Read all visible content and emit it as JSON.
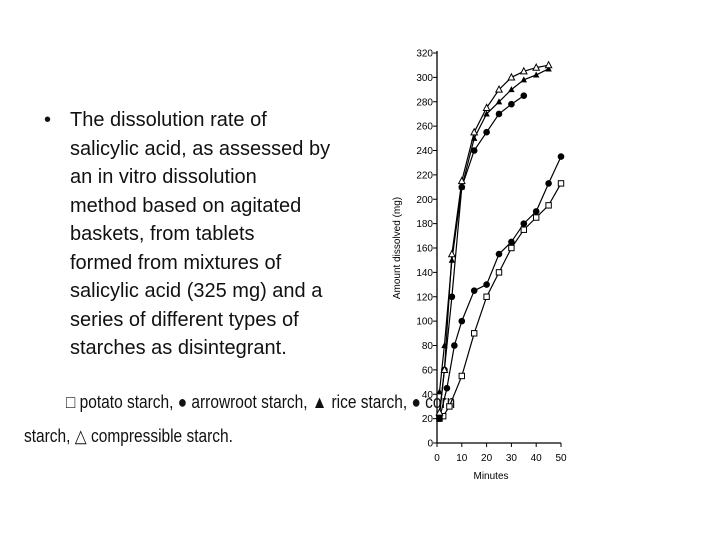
{
  "bullet": {
    "symbol": "•",
    "lines": [
      "The dissolution rate of",
      "salicylic acid, as assessed by",
      "an in vitro dissolution",
      "method based on agitated",
      "baskets, from tablets",
      "formed from mixtures of",
      "salicylic acid (325 mg) and a",
      "series of different types of",
      "starches as disintegrant."
    ]
  },
  "legend": {
    "line1": [
      {
        "marker": "□",
        "text": " potato starch, "
      },
      {
        "marker": "●",
        "text": " arrowroot starch, "
      },
      {
        "marker": "▲",
        "text": " rice starch, "
      },
      {
        "marker": "●",
        "text": " corn"
      }
    ],
    "line2": [
      {
        "marker": "",
        "text": "starch, "
      },
      {
        "marker": "△",
        "text": " compressible starch."
      }
    ]
  },
  "chart_data": {
    "type": "line",
    "xlabel": "Minutes",
    "ylabel": "Amount dissolved (mg)",
    "xlim": [
      0,
      50
    ],
    "ylim": [
      0,
      320
    ],
    "xticks": [
      0,
      10,
      20,
      30,
      40,
      50
    ],
    "yticks": [
      0,
      20,
      40,
      60,
      80,
      100,
      120,
      140,
      160,
      180,
      200,
      220,
      240,
      260,
      280,
      300,
      320
    ],
    "grid": false,
    "series": [
      {
        "name": "potato starch",
        "marker": "square-open",
        "x": [
          1,
          2.5,
          5,
          10,
          15,
          20,
          25,
          30,
          35,
          40,
          45,
          50
        ],
        "y": [
          20,
          22,
          30,
          55,
          90,
          120,
          140,
          160,
          175,
          185,
          195,
          213
        ]
      },
      {
        "name": "arrowroot starch",
        "marker": "circle-filled",
        "x": [
          1,
          4,
          7,
          10,
          15,
          20,
          25,
          30,
          35,
          40,
          45,
          50
        ],
        "y": [
          20,
          45,
          80,
          100,
          125,
          130,
          155,
          165,
          180,
          190,
          213,
          235
        ]
      },
      {
        "name": "rice starch",
        "marker": "triangle-filled",
        "x": [
          1,
          3,
          6,
          10,
          15,
          20,
          25,
          30,
          35,
          40,
          45
        ],
        "y": [
          42,
          80,
          150,
          210,
          250,
          270,
          280,
          290,
          298,
          302,
          307
        ]
      },
      {
        "name": "corn starch",
        "marker": "circle-filled",
        "x": [
          1,
          3,
          6,
          10,
          15,
          20,
          25,
          30,
          35
        ],
        "y": [
          22,
          60,
          120,
          210,
          240,
          255,
          270,
          278,
          285
        ]
      },
      {
        "name": "compressible starch",
        "marker": "triangle-open",
        "x": [
          1,
          3,
          6,
          10,
          15,
          20,
          25,
          30,
          35,
          40,
          45
        ],
        "y": [
          25,
          60,
          155,
          215,
          255,
          275,
          290,
          300,
          305,
          308,
          310
        ]
      }
    ]
  }
}
